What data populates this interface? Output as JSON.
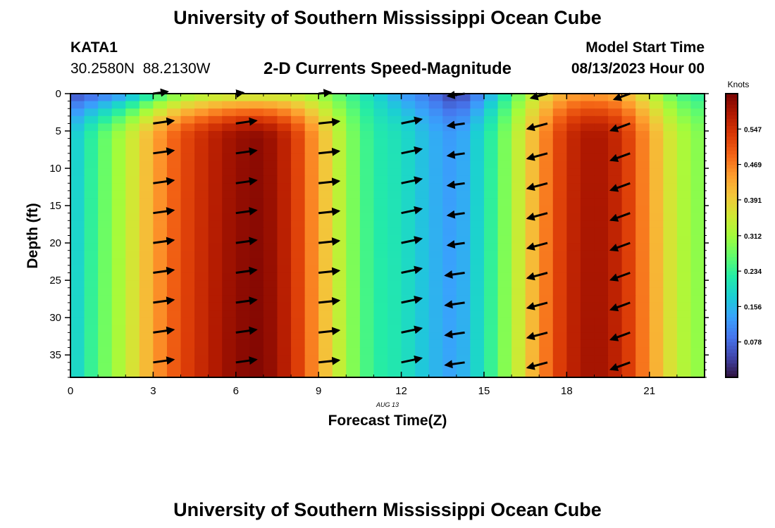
{
  "header": {
    "title": "University of Southern Mississippi Ocean Cube",
    "station_id": "KATA1",
    "coords": "30.2580N  88.2130W",
    "plot_title": "2-D Currents Speed-Magnitude",
    "start_label": "Model Start Time",
    "start_value": "08/13/2023 Hour 00"
  },
  "footer": {
    "title": "University of Southern Mississippi Ocean Cube"
  },
  "chart_data": {
    "type": "heatmap",
    "title": "2-D Currents Speed-Magnitude",
    "xlabel": "Forecast Time(Z)",
    "ylabel": "Depth (ft)",
    "date_label": "AUG 13",
    "xlim": [
      0,
      23
    ],
    "ylim": [
      0,
      38
    ],
    "y_inverted": true,
    "x_ticks": [
      0,
      3,
      6,
      9,
      12,
      15,
      18,
      21
    ],
    "y_ticks": [
      0,
      5,
      10,
      15,
      20,
      25,
      30,
      35
    ],
    "colorbar": {
      "label": "Knots",
      "min": 0.0,
      "max": 0.625,
      "ticks": [
        0.078,
        0.156,
        0.234,
        0.312,
        0.391,
        0.469,
        0.547
      ],
      "colormap": [
        "#30123b",
        "#4145ab",
        "#4675ed",
        "#39a2fc",
        "#1bcfd4",
        "#24eca6",
        "#61fc6c",
        "#a4fc3b",
        "#d1e834",
        "#f3c63a",
        "#fe9b2d",
        "#f36315",
        "#d93806",
        "#b11901",
        "#7a0402"
      ]
    },
    "surface_speed_by_hour": [
      {
        "hour": 0,
        "speed": 0.05
      },
      {
        "hour": 1,
        "speed": 0.08
      },
      {
        "hour": 2,
        "speed": 0.13
      },
      {
        "hour": 3,
        "speed": 0.22
      },
      {
        "hour": 4,
        "speed": 0.29
      },
      {
        "hour": 5,
        "speed": 0.32
      },
      {
        "hour": 6,
        "speed": 0.33
      },
      {
        "hour": 7,
        "speed": 0.33
      },
      {
        "hour": 8,
        "speed": 0.33
      },
      {
        "hour": 9,
        "speed": 0.3
      },
      {
        "hour": 10,
        "speed": 0.25
      },
      {
        "hour": 11,
        "speed": 0.19
      },
      {
        "hour": 12,
        "speed": 0.13
      },
      {
        "hour": 13,
        "speed": 0.09
      },
      {
        "hour": 14,
        "speed": 0.03
      },
      {
        "hour": 15,
        "speed": 0.12
      },
      {
        "hour": 16,
        "speed": 0.25
      },
      {
        "hour": 17,
        "speed": 0.36
      },
      {
        "hour": 18,
        "speed": 0.43
      },
      {
        "hour": 19,
        "speed": 0.44
      },
      {
        "hour": 20,
        "speed": 0.42
      },
      {
        "hour": 21,
        "speed": 0.34
      },
      {
        "hour": 22,
        "speed": 0.25
      },
      {
        "hour": 23,
        "speed": 0.22
      }
    ],
    "bottom_speed_by_hour": [
      {
        "hour": 0,
        "speed": 0.16
      },
      {
        "hour": 1,
        "speed": 0.25
      },
      {
        "hour": 2,
        "speed": 0.33
      },
      {
        "hour": 3,
        "speed": 0.43
      },
      {
        "hour": 4,
        "speed": 0.51
      },
      {
        "hour": 5,
        "speed": 0.56
      },
      {
        "hour": 6,
        "speed": 0.6
      },
      {
        "hour": 7,
        "speed": 0.61
      },
      {
        "hour": 8,
        "speed": 0.55
      },
      {
        "hour": 9,
        "speed": 0.43
      },
      {
        "hour": 10,
        "speed": 0.3
      },
      {
        "hour": 11,
        "speed": 0.22
      },
      {
        "hour": 12,
        "speed": 0.2
      },
      {
        "hour": 13,
        "speed": 0.15
      },
      {
        "hour": 14,
        "speed": 0.12
      },
      {
        "hour": 15,
        "speed": 0.2
      },
      {
        "hour": 16,
        "speed": 0.31
      },
      {
        "hour": 17,
        "speed": 0.44
      },
      {
        "hour": 18,
        "speed": 0.55
      },
      {
        "hour": 19,
        "speed": 0.59
      },
      {
        "hour": 20,
        "speed": 0.55
      },
      {
        "hour": 21,
        "speed": 0.44
      },
      {
        "hour": 22,
        "speed": 0.33
      },
      {
        "hour": 23,
        "speed": 0.28
      }
    ],
    "vector_hours": [
      3,
      6,
      9,
      12,
      14.3,
      17.3,
      20.3
    ],
    "vector_depths": [
      0,
      4,
      8,
      12,
      16,
      20,
      24,
      28,
      32,
      36
    ],
    "vector_direction_by_hour": [
      {
        "hour": 3,
        "angle_deg": 8,
        "lengths": [
          0.6,
          0.85,
          0.85,
          0.85,
          0.85,
          0.85,
          0.85,
          0.85,
          0.85,
          0.85
        ]
      },
      {
        "hour": 6,
        "angle_deg": 8,
        "lengths": [
          0.3,
          0.85,
          0.85,
          0.85,
          0.85,
          0.85,
          0.85,
          0.85,
          0.85,
          0.85
        ]
      },
      {
        "hour": 9,
        "angle_deg": 6,
        "lengths": [
          0.5,
          0.85,
          0.85,
          0.85,
          0.85,
          0.85,
          0.85,
          0.85,
          0.85,
          0.85
        ]
      },
      {
        "hour": 12,
        "angle_deg": 12,
        "lengths": [
          0.0,
          0.85,
          0.85,
          0.85,
          0.85,
          0.85,
          0.85,
          0.85,
          0.85,
          0.85
        ]
      },
      {
        "hour": 14.3,
        "angle_deg": 188,
        "lengths": [
          0.7,
          0.7,
          0.7,
          0.7,
          0.7,
          0.7,
          0.8,
          0.8,
          0.8,
          0.8
        ]
      },
      {
        "hour": 17.3,
        "angle_deg": 195,
        "lengths": [
          0.7,
          0.85,
          0.85,
          0.85,
          0.85,
          0.85,
          0.85,
          0.85,
          0.85,
          0.85
        ]
      },
      {
        "hour": 20.3,
        "angle_deg": 200,
        "lengths": [
          0.7,
          0.85,
          0.85,
          0.85,
          0.85,
          0.85,
          0.85,
          0.85,
          0.85,
          0.85
        ]
      }
    ]
  }
}
